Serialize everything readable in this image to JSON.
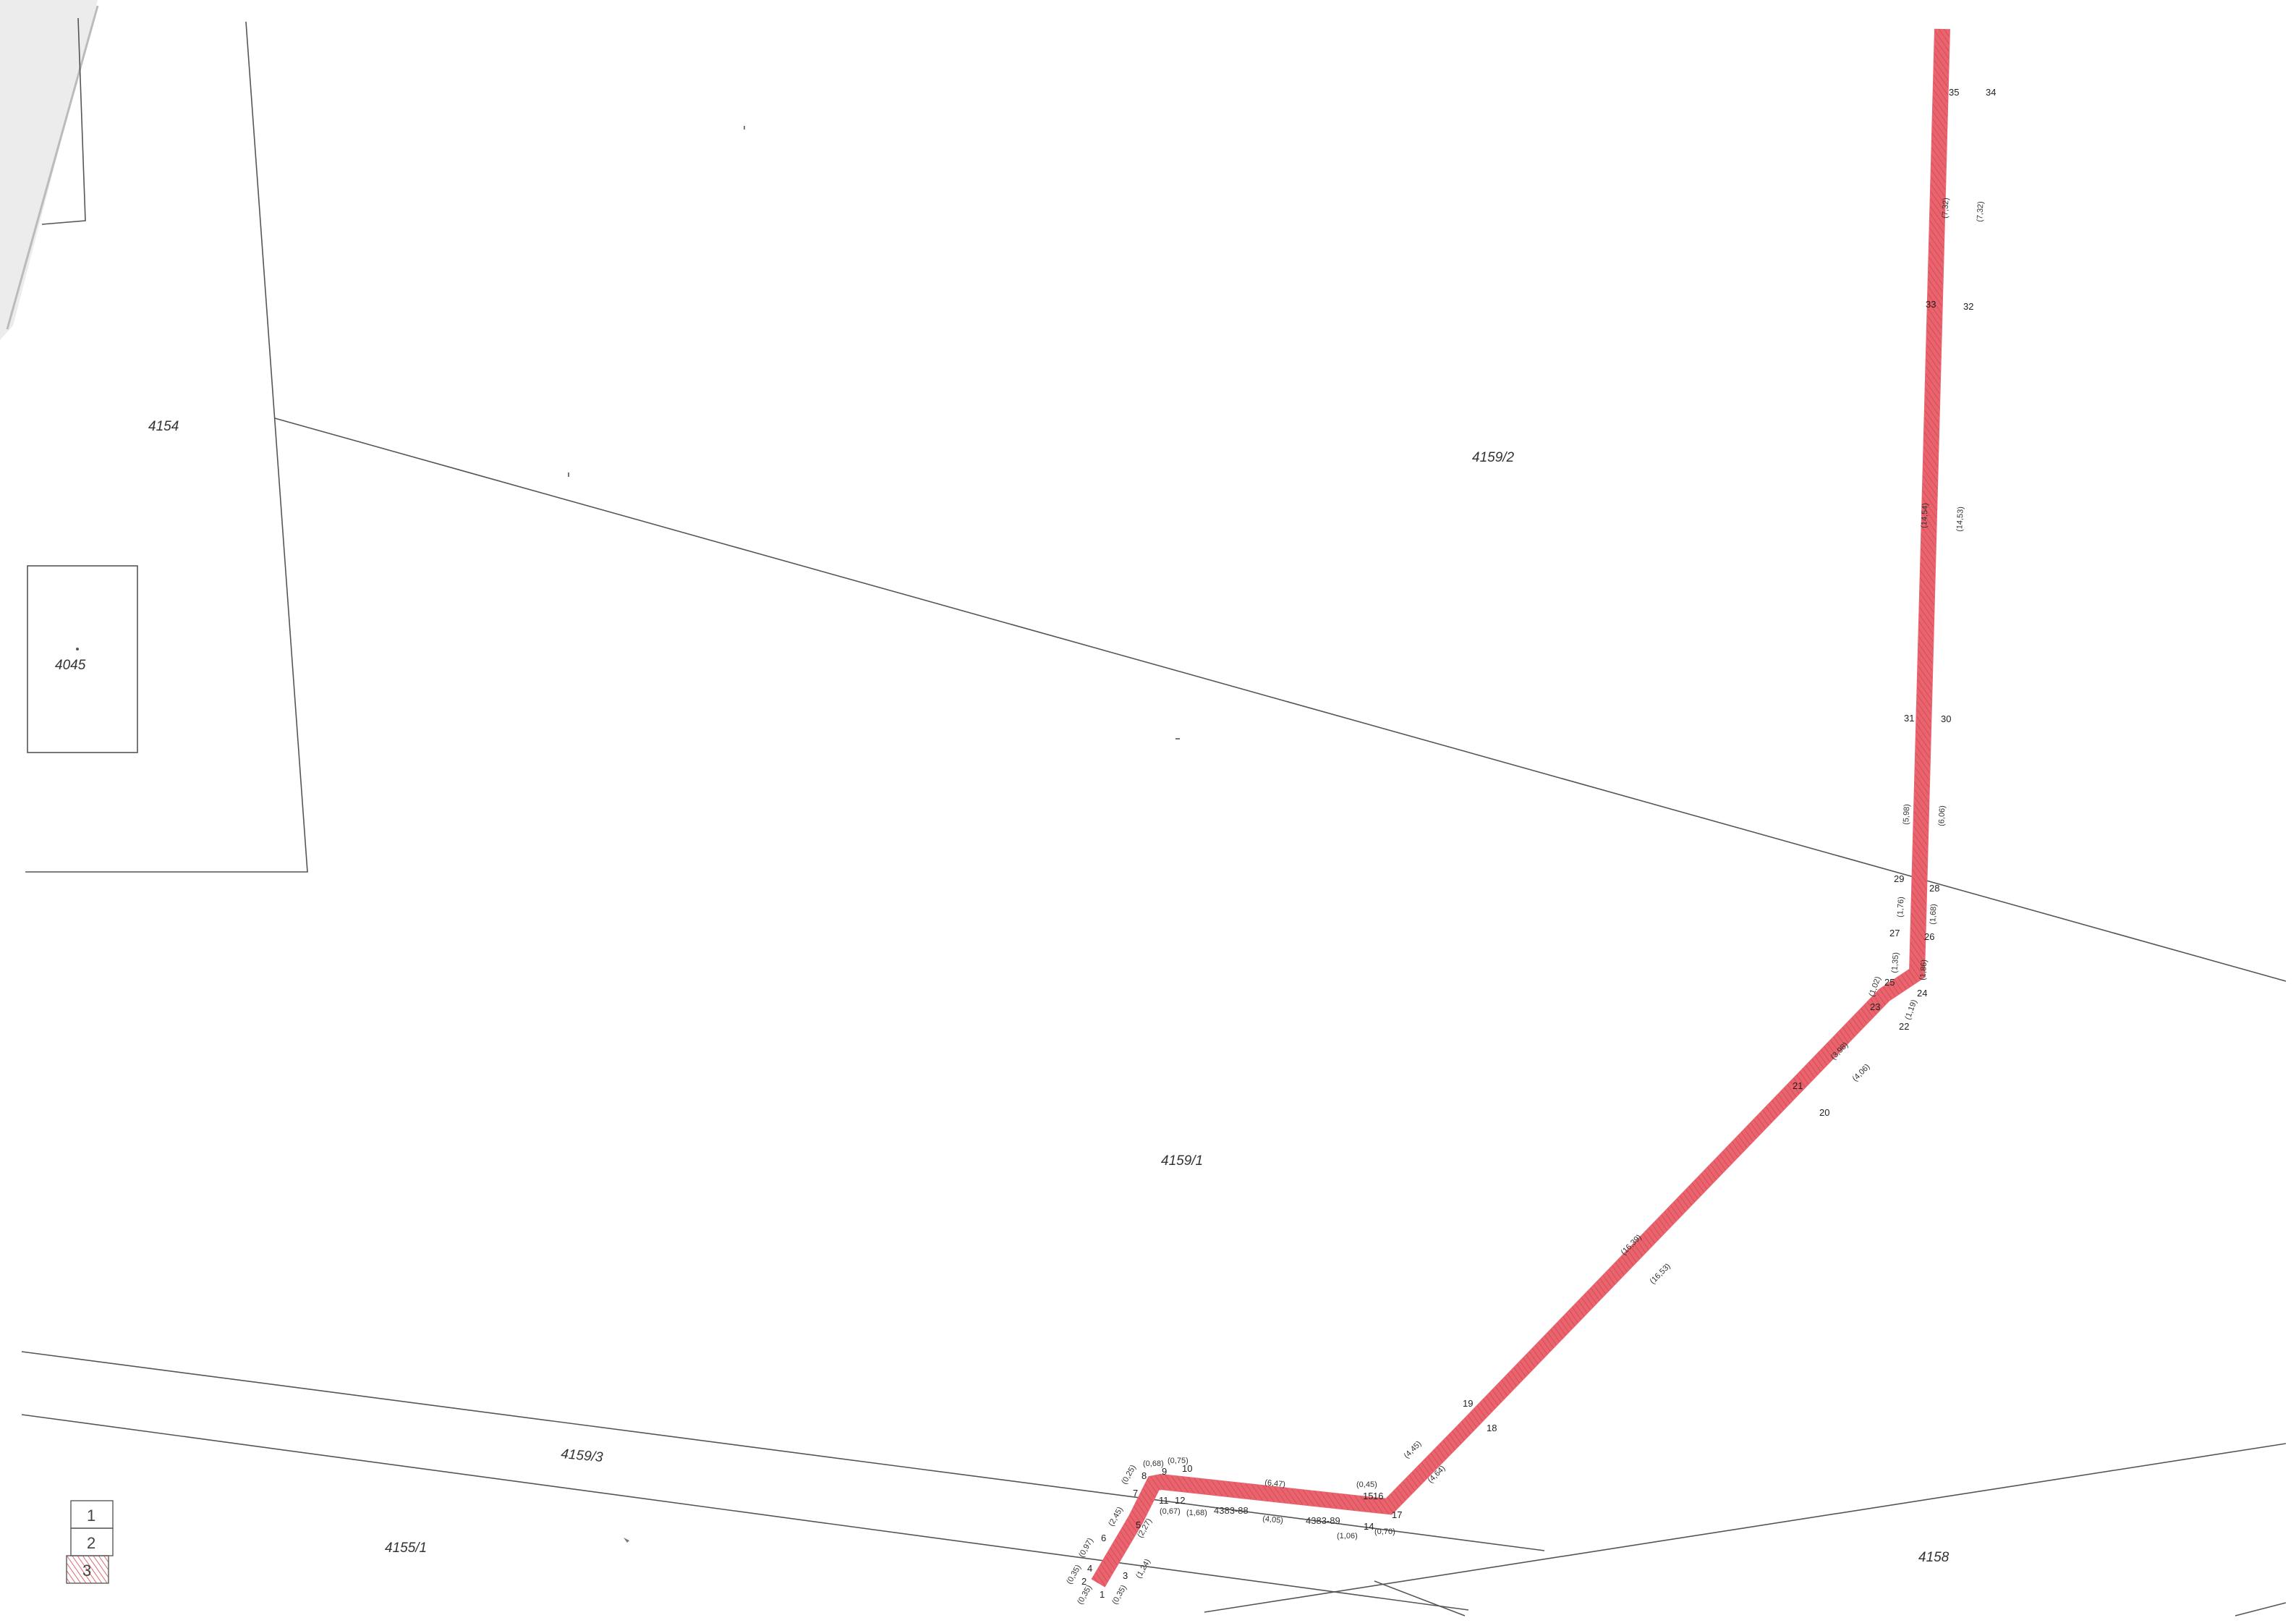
{
  "parcels": [
    {
      "id": "p4154",
      "label": "4154"
    },
    {
      "id": "p4045",
      "label": "4045"
    },
    {
      "id": "p4159_2",
      "label": "4159/2"
    },
    {
      "id": "p4159_1",
      "label": "4159/1"
    },
    {
      "id": "p4159_3",
      "label": "4159/3"
    },
    {
      "id": "p4155_1",
      "label": "4155/1"
    },
    {
      "id": "p4158",
      "label": "4158"
    },
    {
      "id": "p4383_88",
      "label": "4383-88"
    },
    {
      "id": "p4383_89",
      "label": "4383-89"
    }
  ],
  "points": [
    "1",
    "2",
    "3",
    "4",
    "5",
    "6",
    "7",
    "8",
    "9",
    "10",
    "11",
    "12",
    "14",
    "15",
    "16",
    "17",
    "18",
    "19",
    "20",
    "21",
    "22",
    "23",
    "24",
    "25",
    "26",
    "27",
    "28",
    "29",
    "30",
    "31",
    "32",
    "33",
    "34",
    "35"
  ],
  "distances": [
    "(0,35)",
    "(0,97)",
    "(0,35)",
    "(0,35)",
    "(1,24)",
    "(2,45)",
    "(2,27)",
    "(0,25)",
    "(0,68)",
    "(0,75)",
    "(0,67)",
    "(1,68)",
    "(6,47)",
    "(4,05)",
    "(0,45)",
    "(1,06)",
    "(0,70)",
    "(4,45)",
    "(4,64)",
    "(16,39)",
    "(16,53)",
    "(3,98)",
    "(4,06)",
    "(1,02)",
    "(1,19)",
    "(1,35)",
    "(1,86)",
    "(1,76)",
    "(1,68)",
    "(5,98)",
    "(6,06)",
    "(14,54)",
    "(14,53)",
    "(7,32)",
    "(7,32)"
  ],
  "legend": [
    "1",
    "2",
    "3"
  ],
  "colors": {
    "strip": "#e8646e",
    "hatch": "#d9434e",
    "line": "#555555"
  }
}
